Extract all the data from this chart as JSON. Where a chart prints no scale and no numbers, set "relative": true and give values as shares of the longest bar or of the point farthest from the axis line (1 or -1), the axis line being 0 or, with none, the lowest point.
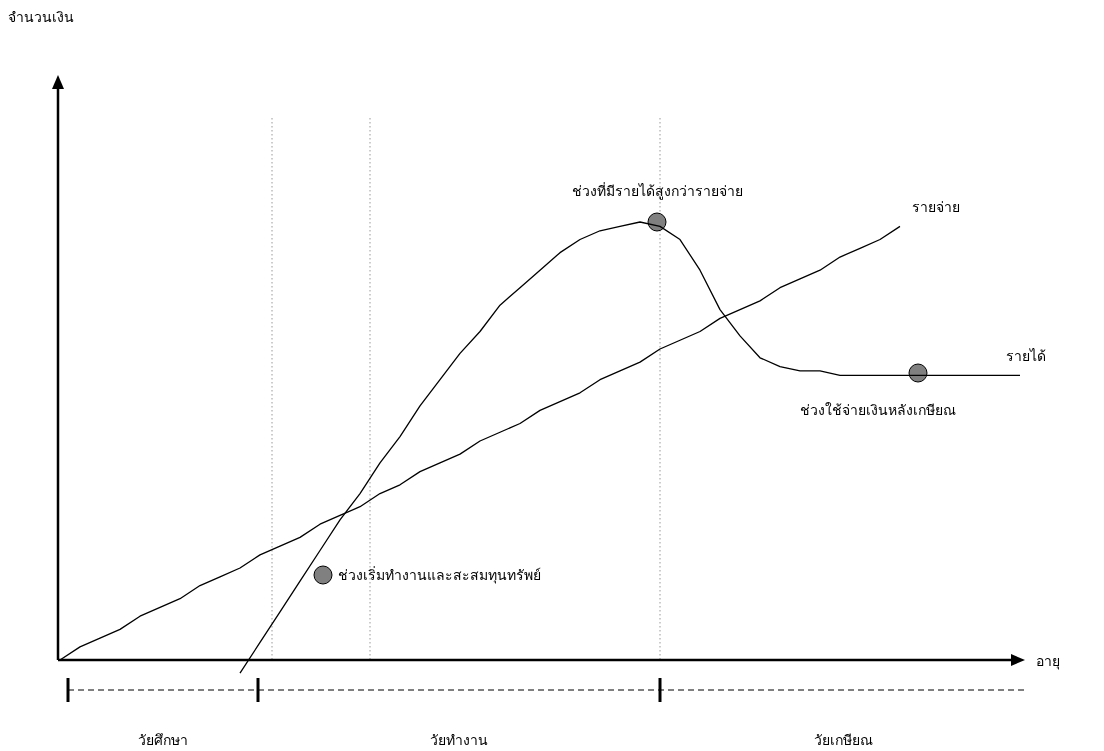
{
  "chart_data": {
    "type": "line",
    "relative": true,
    "xlabel": "อายุ",
    "categories": [
      null,
      null,
      null,
      null,
      null,
      null,
      null,
      null,
      null,
      null,
      null,
      null,
      null,
      null,
      null,
      null,
      null,
      null,
      null,
      null,
      null,
      null,
      null,
      null,
      null,
      null,
      null,
      null,
      null,
      null,
      null,
      null,
      null,
      null,
      null,
      null,
      null,
      null,
      null,
      null,
      null,
      null,
      null,
      null,
      null,
      null,
      null,
      null,
      null
    ],
    "series": [
      {
        "name": "รายจ่าย",
        "color": "#000000",
        "values": [
          0.0,
          0.03,
          0.05,
          0.07,
          0.1,
          0.12,
          0.14,
          0.17,
          0.19,
          0.21,
          0.24,
          0.26,
          0.28,
          0.31,
          0.33,
          0.35,
          0.38,
          0.4,
          0.43,
          0.45,
          0.47,
          0.5,
          0.52,
          0.54,
          0.57,
          0.59,
          0.61,
          0.64,
          0.66,
          0.68,
          0.71,
          0.73,
          0.75,
          0.78,
          0.8,
          0.82,
          0.85,
          0.87,
          0.89,
          0.92,
          0.94,
          0.96,
          0.99,
          null,
          null,
          null,
          null,
          null,
          null
        ]
      },
      {
        "name": "รายได้",
        "color": "#000000",
        "values": [
          null,
          null,
          null,
          null,
          null,
          null,
          null,
          null,
          null,
          -0.03,
          0.04,
          0.11,
          0.18,
          0.25,
          0.32,
          0.38,
          0.45,
          0.51,
          0.58,
          0.64,
          0.7,
          0.75,
          0.81,
          0.85,
          0.89,
          0.93,
          0.96,
          0.98,
          0.99,
          1.0,
          0.99,
          0.96,
          0.89,
          0.8,
          0.74,
          0.69,
          0.67,
          0.66,
          0.66,
          0.65,
          0.65,
          0.65,
          0.65,
          0.65,
          0.65,
          0.65,
          0.65,
          0.65,
          0.65
        ]
      }
    ],
    "annotations": [
      "ช่วงเริ่มทำงานและสะสมทุนทรัพย์",
      "ช่วงที่มีรายได้สูงกว่ารายจ่าย",
      "ช่วงใช้จ่ายเงินหลังเกษียณ",
      "วัยศึกษา",
      "วัยทำงาน",
      "วัยเกษียณ",
      "จำนวนเงิน"
    ]
  }
}
